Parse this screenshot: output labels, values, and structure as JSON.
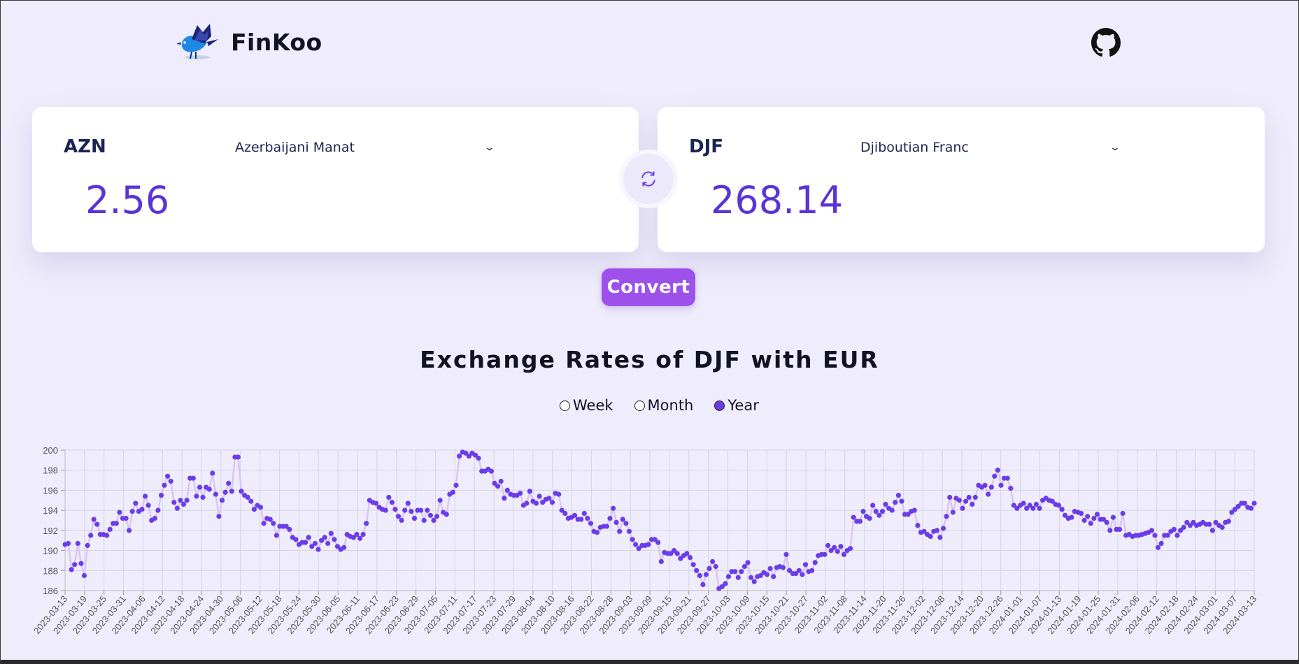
{
  "app": {
    "brand": "FinKoo"
  },
  "converter": {
    "from": {
      "code": "AZN",
      "name": "Azerbaijani Manat",
      "amount": "2.56"
    },
    "to": {
      "code": "DJF",
      "name": "Djiboutian Franc",
      "amount": "268.14"
    },
    "convert_label": "Convert"
  },
  "chart_section": {
    "title": "Exchange Rates of DJF with EUR",
    "ranges": [
      {
        "label": "Week",
        "selected": false
      },
      {
        "label": "Month",
        "selected": false
      },
      {
        "label": "Year",
        "selected": true
      }
    ]
  },
  "colors": {
    "accent": "#5b33d6",
    "button": "#9d51ea",
    "point": "#6a3de8",
    "line": "#d9c6f5",
    "background": "#efedfb"
  },
  "chart_data": {
    "type": "line",
    "ylim": [
      186,
      200
    ],
    "yticks": [
      186,
      188,
      190,
      192,
      194,
      196,
      198,
      200
    ],
    "grid": true,
    "xticks": [
      "2023-03-13",
      "2023-03-19",
      "2023-03-25",
      "2023-03-31",
      "2023-04-06",
      "2023-04-12",
      "2023-04-18",
      "2023-04-24",
      "2023-04-30",
      "2023-05-06",
      "2023-05-12",
      "2023-05-18",
      "2023-05-24",
      "2023-05-30",
      "2023-06-05",
      "2023-06-11",
      "2023-06-17",
      "2023-06-23",
      "2023-06-29",
      "2023-07-05",
      "2023-07-11",
      "2023-07-17",
      "2023-07-23",
      "2023-07-29",
      "2023-08-04",
      "2023-08-10",
      "2023-08-16",
      "2023-08-22",
      "2023-08-28",
      "2023-09-03",
      "2023-09-09",
      "2023-09-15",
      "2023-09-21",
      "2023-09-27",
      "2023-10-03",
      "2023-10-09",
      "2023-10-15",
      "2023-10-21",
      "2023-10-27",
      "2023-11-02",
      "2023-11-08",
      "2023-11-14",
      "2023-11-20",
      "2023-11-26",
      "2023-12-02",
      "2023-12-08",
      "2023-12-14",
      "2023-12-20",
      "2023-12-26",
      "2024-01-01",
      "2024-01-07",
      "2024-01-13",
      "2024-01-19",
      "2024-01-25",
      "2024-01-31",
      "2024-02-06",
      "2024-02-12",
      "2024-02-18",
      "2024-02-24",
      "2024-03-01",
      "2024-03-07",
      "2024-03-13"
    ],
    "series": [
      {
        "step_days": 1,
        "values": [
          190.6,
          190.7,
          188.1,
          188.6,
          190.7,
          188.7,
          187.5,
          190.5,
          191.5,
          193.1,
          192.6,
          191.6,
          191.6,
          191.5,
          192.1,
          192.7,
          192.7,
          193.8,
          193.2,
          193.2,
          192.0,
          193.9,
          194.7,
          193.9,
          194.1,
          195.4,
          194.5,
          193.0,
          193.2,
          194.0,
          195.5,
          196.5,
          197.4,
          196.9,
          194.8,
          194.2,
          195.0,
          194.6,
          195.0,
          197.2,
          197.2,
          195.4,
          196.3,
          195.3,
          196.3,
          196.1,
          197.7,
          195.6,
          193.4,
          195.0,
          195.8,
          196.7,
          195.9,
          199.3,
          199.3,
          195.9,
          195.5,
          195.3,
          194.9,
          194.1,
          194.5,
          194.3,
          192.7,
          193.2,
          193.1,
          192.7,
          191.5,
          192.4,
          192.4,
          192.4,
          192.1,
          191.3,
          191.1,
          190.6,
          190.8,
          190.8,
          191.3,
          190.4,
          190.7,
          190.1,
          191.0,
          191.3,
          190.7,
          191.7,
          191.1,
          190.4,
          190.1,
          190.3,
          191.6,
          191.4,
          191.3,
          191.6,
          191.2,
          191.6,
          192.7,
          195.0,
          194.8,
          194.7,
          194.3,
          194.1,
          194.0,
          195.3,
          194.8,
          194.1,
          193.4,
          193.0,
          194.0,
          194.7,
          193.9,
          193.2,
          194.0,
          194.0,
          193.0,
          194.0,
          193.5,
          193.0,
          193.4,
          195.0,
          193.8,
          193.6,
          195.6,
          195.8,
          196.5,
          199.4,
          199.8,
          199.7,
          199.4,
          199.7,
          199.5,
          199.2,
          197.9,
          197.9,
          198.1,
          197.9,
          196.7,
          196.4,
          196.9,
          195.2,
          196.0,
          195.6,
          195.5,
          195.5,
          195.7,
          194.5,
          194.7,
          195.9,
          194.9,
          194.7,
          195.4,
          194.8,
          195.1,
          195.2,
          194.8,
          195.7,
          195.6,
          194.0,
          193.7,
          193.2,
          193.3,
          193.5,
          193.1,
          193.1,
          193.7,
          193.2,
          192.7,
          191.9,
          191.8,
          192.3,
          192.4,
          192.4,
          193.2,
          194.2,
          192.8,
          191.9,
          193.1,
          192.7,
          191.9,
          191.1,
          190.6,
          190.2,
          190.5,
          190.5,
          190.6,
          191.1,
          191.1,
          190.8,
          188.9,
          189.8,
          189.7,
          189.7,
          190.0,
          189.7,
          189.2,
          189.5,
          189.7,
          189.3,
          188.6,
          188.0,
          187.5,
          186.6,
          187.6,
          188.2,
          188.9,
          188.4,
          186.2,
          186.4,
          186.7,
          187.4,
          187.9,
          187.9,
          187.3,
          187.9,
          188.4,
          188.8,
          187.3,
          186.9,
          187.4,
          187.5,
          187.8,
          187.6,
          188.2,
          187.4,
          188.3,
          188.4,
          188.3,
          189.6,
          188.0,
          187.7,
          187.7,
          188.0,
          187.6,
          188.6,
          187.9,
          188.0,
          188.8,
          189.5,
          189.6,
          189.6,
          190.5,
          190.0,
          190.3,
          189.9,
          190.4,
          189.6,
          190.0,
          190.2,
          193.3,
          192.9,
          192.9,
          193.9,
          193.4,
          193.2,
          194.5,
          193.9,
          193.5,
          193.9,
          194.6,
          194.2,
          194.0,
          194.8,
          195.5,
          194.9,
          193.6,
          193.6,
          193.9,
          194.0,
          192.5,
          191.8,
          191.9,
          191.6,
          191.4,
          191.9,
          192.0,
          191.3,
          192.2,
          193.4,
          195.3,
          193.8,
          195.2,
          195.0,
          194.2,
          194.9,
          195.3,
          194.6,
          195.3,
          196.5,
          196.3,
          196.5,
          195.6,
          196.3,
          197.4,
          198.0,
          196.5,
          197.2,
          197.2,
          196.2,
          194.5,
          194.2,
          194.5,
          194.7,
          194.2,
          194.5,
          194.2,
          194.6,
          194.2,
          195.0,
          195.2,
          195.0,
          194.9,
          194.6,
          194.5,
          194.1,
          193.5,
          193.2,
          193.3,
          193.9,
          193.8,
          193.7,
          193.0,
          193.4,
          192.7,
          193.2,
          193.6,
          193.1,
          193.1,
          192.8,
          192.0,
          193.3,
          192.1,
          192.1,
          193.7,
          191.5,
          191.6,
          191.4,
          191.5,
          191.5,
          191.6,
          191.7,
          191.8,
          192.0,
          191.5,
          190.3,
          190.7,
          191.5,
          191.5,
          191.9,
          192.1,
          191.5,
          192.0,
          192.3,
          192.8,
          192.5,
          192.8,
          192.5,
          192.6,
          192.8,
          192.6,
          192.6,
          192.0,
          192.8,
          192.5,
          192.3,
          192.8,
          192.9,
          193.8,
          194.1,
          194.4,
          194.7,
          194.7,
          194.3,
          194.2,
          194.7
        ]
      }
    ]
  }
}
